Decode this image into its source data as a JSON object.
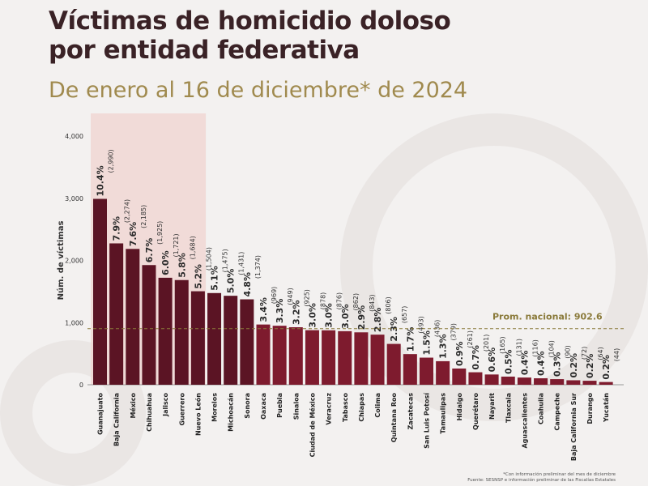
{
  "title_line1": "Víctimas de homicidio doloso",
  "title_line2": "por entidad federativa",
  "subtitle": "De enero al 16 de diciembre* de 2024",
  "footnote_line1": "*Con información preliminar del mes de diciembre",
  "footnote_line2": "Fuente: SESNSP e información preliminar de las Fiscalías Estatales",
  "colors": {
    "top": "#5b1424",
    "rest": "#7e1b2e",
    "highlight": "#f0d3d0",
    "avg": "#8a7a3a"
  },
  "chart_data": {
    "type": "bar",
    "title": "Víctimas de homicidio doloso por entidad federativa",
    "ylabel": "Núm. de víctimas",
    "xlabel": "",
    "ylim": [
      0,
      4000
    ],
    "yticks": [
      "0",
      "1,000",
      "2,000",
      "3,000",
      "4,000"
    ],
    "average_label": "Prom. nacional: 902.6",
    "average": 902.6,
    "highlighted_count": 7,
    "categories": [
      "Guanajuato",
      "Baja California",
      "México",
      "Chihuahua",
      "Jalisco",
      "Guerrero",
      "Nuevo León",
      "Morelos",
      "Michoacán",
      "Sonora",
      "Oaxaca",
      "Puebla",
      "Sinaloa",
      "Ciudad de México",
      "Veracruz",
      "Tabasco",
      "Chiapas",
      "Colima",
      "Quintana Roo",
      "Zacatecas",
      "San Luis Potosí",
      "Tamaulipas",
      "Hidalgo",
      "Querétaro",
      "Nayarit",
      "Tlaxcala",
      "Aguascalientes",
      "Coahuila",
      "Campeche",
      "Baja California Sur",
      "Durango",
      "Yucatán"
    ],
    "values": [
      2990,
      2274,
      2185,
      1925,
      1721,
      1684,
      1504,
      1475,
      1431,
      1374,
      969,
      949,
      925,
      878,
      876,
      862,
      843,
      806,
      657,
      493,
      436,
      379,
      261,
      201,
      165,
      131,
      116,
      104,
      90,
      72,
      64,
      44
    ],
    "value_labels": [
      "(2,990)",
      "(2,274)",
      "(2,185)",
      "(1,925)",
      "(1,721)",
      "(1,684)",
      "(1,504)",
      "(1,475)",
      "(1,431)",
      "(1,374)",
      "(969)",
      "(949)",
      "(925)",
      "(878)",
      "(876)",
      "(862)",
      "(843)",
      "(806)",
      "(657)",
      "(493)",
      "(436)",
      "(379)",
      "(261)",
      "(201)",
      "(165)",
      "(131)",
      "(116)",
      "(104)",
      "(90)",
      "(72)",
      "(64)",
      "(44)"
    ],
    "percent_labels": [
      "10.4%",
      "7.9%",
      "7.6%",
      "6.7%",
      "6.0%",
      "5.8%",
      "5.2%",
      "5.1%",
      "5.0%",
      "4.8%",
      "3.4%",
      "3.3%",
      "3.2%",
      "3.0%",
      "3.0%",
      "3.0%",
      "2.9%",
      "2.8%",
      "2.3%",
      "1.7%",
      "1.5%",
      "1.3%",
      "0.9%",
      "0.7%",
      "0.6%",
      "0.5%",
      "0.4%",
      "0.4%",
      "0.3%",
      "0.2%",
      "0.2%",
      "0.2%"
    ]
  }
}
